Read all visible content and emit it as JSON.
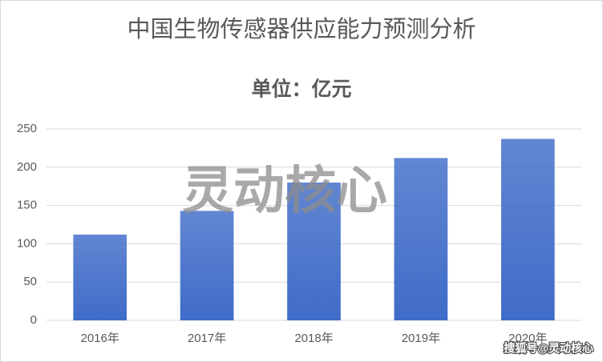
{
  "chart_data": {
    "type": "bar",
    "title": "中国生物传感器供应能力预测分析",
    "subtitle": "单位：亿元",
    "categories": [
      "2016年",
      "2017年",
      "2018年",
      "2019年",
      "2020年"
    ],
    "values": [
      112,
      143,
      180,
      212,
      237
    ],
    "color": "#3f6cc8",
    "ylim": [
      0,
      250
    ],
    "yticks": [
      0,
      50,
      100,
      150,
      200,
      250
    ],
    "grid": true,
    "watermark": "灵动核心",
    "source_mark": "搜狐号@灵动核心"
  }
}
